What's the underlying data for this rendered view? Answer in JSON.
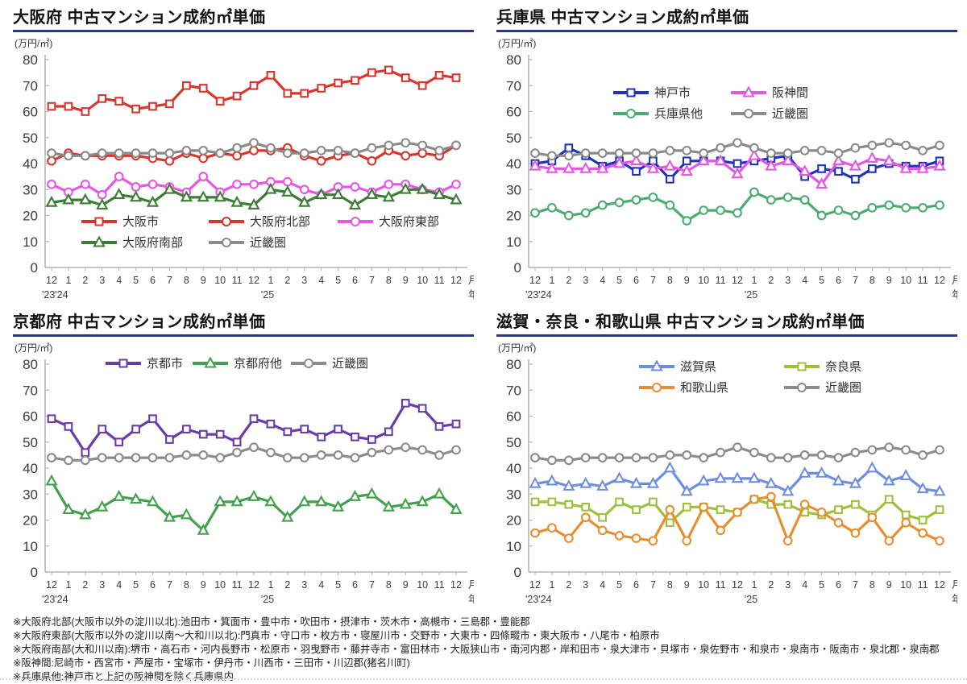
{
  "chart_data": [
    {
      "type": "line",
      "title": "大阪府 中古マンション成約㎡単価",
      "unit": "(万円/㎡)",
      "ylim": [
        0,
        80
      ],
      "yticks": [
        0,
        10,
        20,
        30,
        40,
        50,
        60,
        70,
        80
      ],
      "months": [
        "12",
        "1",
        "2",
        "3",
        "4",
        "5",
        "6",
        "7",
        "8",
        "9",
        "10",
        "11",
        "12",
        "1",
        "2",
        "3",
        "4",
        "5",
        "6",
        "7",
        "8",
        "9",
        "10",
        "11",
        "12"
      ],
      "month_axis_suffix": "月",
      "year_axis_suffix": "年",
      "year_labels": [
        {
          "index": 0,
          "text": "'23'24"
        },
        {
          "index": 13,
          "text": "'25"
        }
      ],
      "grid": false,
      "series": [
        {
          "name": "大阪市",
          "marker": "square",
          "color": "#d7352e",
          "values": [
            62,
            62,
            60,
            65,
            64,
            61,
            62,
            63,
            70,
            69,
            64,
            66,
            70,
            74,
            67,
            67,
            69,
            71,
            72,
            75,
            76,
            73,
            70,
            74,
            73
          ]
        },
        {
          "name": "大阪府北部",
          "marker": "circle",
          "color": "#d7352e",
          "values": [
            41,
            44,
            43,
            43,
            43,
            43,
            42,
            41,
            44,
            42,
            44,
            43,
            45,
            45,
            46,
            43,
            41,
            43,
            44,
            41,
            45,
            43,
            44,
            43,
            47
          ]
        },
        {
          "name": "大阪府東部",
          "marker": "circle",
          "color": "#e357e3",
          "values": [
            32,
            29,
            32,
            28,
            35,
            31,
            32,
            31,
            29,
            35,
            29,
            32,
            32,
            33,
            33,
            30,
            28,
            31,
            31,
            29,
            32,
            32,
            30,
            29,
            32
          ]
        },
        {
          "name": "大阪府南部",
          "marker": "triangle",
          "color": "#3c7d35",
          "values": [
            25,
            26,
            26,
            24,
            28,
            27,
            25,
            30,
            27,
            27,
            27,
            25,
            24,
            30,
            29,
            25,
            28,
            28,
            24,
            28,
            27,
            30,
            30,
            28,
            26
          ]
        },
        {
          "name": "近畿圏",
          "marker": "circle",
          "color": "#8b8b8b",
          "values": [
            44,
            43,
            43,
            44,
            44,
            44,
            44,
            44,
            45,
            45,
            44,
            46,
            48,
            46,
            44,
            44,
            45,
            45,
            44,
            46,
            47,
            48,
            47,
            45,
            47
          ]
        }
      ]
    },
    {
      "type": "line",
      "title": "兵庫県 中古マンション成約㎡単価",
      "unit": "(万円/㎡)",
      "ylim": [
        0,
        80
      ],
      "yticks": [
        0,
        10,
        20,
        30,
        40,
        50,
        60,
        70,
        80
      ],
      "months": [
        "12",
        "1",
        "2",
        "3",
        "4",
        "5",
        "6",
        "7",
        "8",
        "9",
        "10",
        "11",
        "12",
        "1",
        "2",
        "3",
        "4",
        "5",
        "6",
        "7",
        "8",
        "9",
        "10",
        "11",
        "12"
      ],
      "month_axis_suffix": "月",
      "year_axis_suffix": "年",
      "year_labels": [
        {
          "index": 0,
          "text": "'23'24"
        },
        {
          "index": 13,
          "text": "'25"
        }
      ],
      "grid": false,
      "series": [
        {
          "name": "神戸市",
          "marker": "square",
          "color": "#2233bb",
          "values": [
            40,
            41,
            46,
            43,
            39,
            41,
            37,
            41,
            34,
            41,
            41,
            41,
            40,
            41,
            42,
            43,
            35,
            38,
            37,
            34,
            38,
            40,
            39,
            39,
            41
          ]
        },
        {
          "name": "阪神間",
          "marker": "triangle",
          "color": "#e357e3",
          "values": [
            39,
            38,
            38,
            38,
            38,
            40,
            41,
            38,
            39,
            37,
            41,
            41,
            36,
            43,
            39,
            41,
            37,
            32,
            41,
            39,
            42,
            41,
            38,
            38,
            39
          ]
        },
        {
          "name": "兵庫県他",
          "marker": "circle",
          "color": "#4cab72",
          "values": [
            21,
            23,
            20,
            21,
            24,
            25,
            26,
            27,
            24,
            18,
            22,
            22,
            21,
            29,
            26,
            27,
            26,
            20,
            22,
            20,
            23,
            24,
            23,
            23,
            24
          ]
        },
        {
          "name": "近畿圏",
          "marker": "circle",
          "color": "#8b8b8b",
          "values": [
            44,
            43,
            43,
            44,
            44,
            44,
            44,
            44,
            45,
            45,
            44,
            46,
            48,
            46,
            44,
            44,
            45,
            45,
            44,
            46,
            47,
            48,
            47,
            45,
            47
          ]
        }
      ]
    },
    {
      "type": "line",
      "title": "京都府 中古マンション成約㎡単価",
      "unit": "(万円/㎡)",
      "ylim": [
        0,
        80
      ],
      "yticks": [
        0,
        10,
        20,
        30,
        40,
        50,
        60,
        70,
        80
      ],
      "months": [
        "12",
        "1",
        "2",
        "3",
        "4",
        "5",
        "6",
        "7",
        "8",
        "9",
        "10",
        "11",
        "12",
        "1",
        "2",
        "3",
        "4",
        "5",
        "6",
        "7",
        "8",
        "9",
        "10",
        "11",
        "12"
      ],
      "month_axis_suffix": "月",
      "year_axis_suffix": "年",
      "year_labels": [
        {
          "index": 0,
          "text": "'23'24"
        },
        {
          "index": 13,
          "text": "'25"
        }
      ],
      "grid": false,
      "series": [
        {
          "name": "京都市",
          "marker": "square",
          "color": "#6a3da6",
          "values": [
            59,
            56,
            46,
            55,
            50,
            55,
            59,
            51,
            55,
            53,
            53,
            50,
            59,
            57,
            54,
            55,
            52,
            55,
            52,
            51,
            54,
            65,
            63,
            56,
            57
          ]
        },
        {
          "name": "京都府他",
          "marker": "triangle",
          "color": "#42a14e",
          "values": [
            35,
            24,
            22,
            25,
            29,
            28,
            27,
            21,
            22,
            16,
            27,
            27,
            29,
            27,
            21,
            27,
            27,
            25,
            29,
            30,
            25,
            26,
            27,
            30,
            24
          ]
        },
        {
          "name": "近畿圏",
          "marker": "circle",
          "color": "#8b8b8b",
          "values": [
            44,
            43,
            43,
            44,
            44,
            44,
            44,
            44,
            45,
            45,
            44,
            46,
            48,
            46,
            44,
            44,
            45,
            45,
            44,
            46,
            47,
            48,
            47,
            45,
            47
          ]
        }
      ]
    },
    {
      "type": "line",
      "title": "滋賀・奈良・和歌山県 中古マンション成約㎡単価",
      "unit": "(万円/㎡)",
      "ylim": [
        0,
        80
      ],
      "yticks": [
        0,
        10,
        20,
        30,
        40,
        50,
        60,
        70,
        80
      ],
      "months": [
        "12",
        "1",
        "2",
        "3",
        "4",
        "5",
        "6",
        "7",
        "8",
        "9",
        "10",
        "11",
        "12",
        "1",
        "2",
        "3",
        "4",
        "5",
        "6",
        "7",
        "8",
        "9",
        "10",
        "11",
        "12"
      ],
      "month_axis_suffix": "月",
      "year_axis_suffix": "年",
      "year_labels": [
        {
          "index": 0,
          "text": "'23'24"
        },
        {
          "index": 13,
          "text": "'25"
        }
      ],
      "grid": false,
      "series": [
        {
          "name": "滋賀県",
          "marker": "triangle",
          "color": "#6e8ede",
          "values": [
            34,
            35,
            33,
            34,
            33,
            36,
            34,
            34,
            40,
            31,
            35,
            36,
            36,
            36,
            34,
            31,
            38,
            38,
            35,
            34,
            40,
            35,
            37,
            32,
            31
          ]
        },
        {
          "name": "奈良県",
          "marker": "square",
          "color": "#9dc13c",
          "values": [
            27,
            27,
            26,
            25,
            21,
            27,
            24,
            27,
            19,
            25,
            25,
            24,
            23,
            28,
            26,
            26,
            23,
            22,
            24,
            26,
            22,
            28,
            22,
            20,
            24
          ]
        },
        {
          "name": "和歌山県",
          "marker": "circle",
          "color": "#e78f2e",
          "values": [
            15,
            17,
            13,
            21,
            16,
            14,
            13,
            12,
            24,
            12,
            25,
            16,
            23,
            28,
            29,
            12,
            26,
            23,
            19,
            15,
            21,
            12,
            19,
            15,
            12
          ]
        },
        {
          "name": "近畿圏",
          "marker": "circle",
          "color": "#8b8b8b",
          "values": [
            44,
            43,
            43,
            44,
            44,
            44,
            44,
            44,
            45,
            45,
            44,
            46,
            48,
            46,
            44,
            44,
            45,
            45,
            44,
            46,
            47,
            48,
            47,
            45,
            47
          ]
        }
      ]
    }
  ],
  "footnotes": [
    "※大阪府北部(大阪市以外の淀川以北):池田市・箕面市・豊中市・吹田市・摂津市・茨木市・高槻市・三島郡・豊能郡",
    "※大阪府東部(大阪市以外の淀川以南～大和川以北):門真市・守口市・枚方市・寝屋川市・交野市・大東市・四條畷市・東大阪市・八尾市・柏原市",
    "※大阪府南部(大和川以南):堺市・高石市・河内長野市・松原市・羽曳野市・藤井寺市・富田林市・大阪狭山市・南河内郡・岸和田市・泉大津市・貝塚市・泉佐野市・和泉市・泉南市・阪南市・泉北郡・泉南郡",
    "※阪神間:尼崎市・西宮市・芦屋市・宝塚市・伊丹市・川西市・三田市・川辺郡(猪名川町)",
    "※兵庫県他:神戸市と上記の阪神間を除く兵庫県内"
  ],
  "accent": {
    "title_underline": "#2b3697"
  }
}
